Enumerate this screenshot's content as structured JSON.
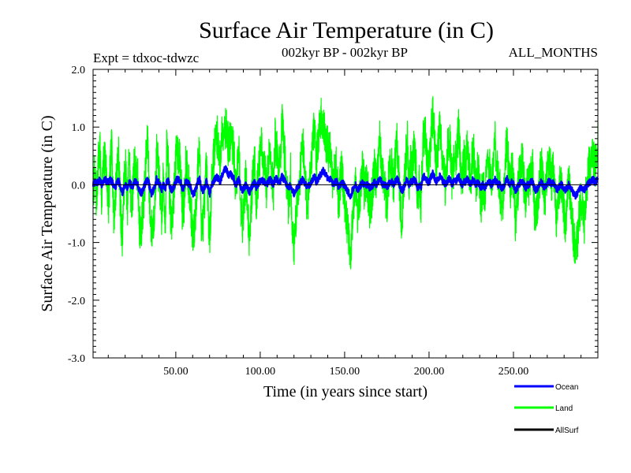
{
  "chart_data": {
    "type": "line",
    "title": "Surface Air Temperature (in C)",
    "subtitle_left": "Expt = tdxoc-tdwzc",
    "subtitle_center": "002kyr BP - 002kyr BP",
    "subtitle_right": "ALL_MONTHS",
    "xlabel": "Time (in years since start)",
    "ylabel": "Surface Air Temperature (in C)",
    "xlim": [
      1,
      300
    ],
    "ylim": [
      -3.0,
      2.0
    ],
    "xticks": [
      50,
      100,
      150,
      200,
      250
    ],
    "xtick_labels": [
      "50.00",
      "100.00",
      "150.00",
      "200.00",
      "250.00"
    ],
    "yticks": [
      -3.0,
      -2.0,
      -1.0,
      0.0,
      1.0,
      2.0
    ],
    "ytick_labels": [
      "-3.0",
      "-2.0",
      "-1.0",
      "0.0",
      "1.0",
      "2.0"
    ],
    "zero_line": true,
    "grid": false,
    "legend_position": "bottom-right",
    "months_per_year": 12,
    "colors": {
      "Ocean": "#0000ff",
      "Land": "#00ff00",
      "AllSurf": "#000000"
    },
    "series": [
      {
        "name": "Ocean",
        "x_start": 1,
        "x_end": 300,
        "values": [
          0.0,
          0.05,
          0.02,
          0.05,
          0.1,
          0.0,
          0.05,
          0.1,
          0.05,
          0.05,
          0.1,
          0.05,
          0.0,
          -0.05,
          0.05,
          0.05,
          -0.05,
          -0.15,
          -0.05,
          0.0,
          -0.05,
          0.05,
          0.0,
          -0.05,
          0.05,
          0.05,
          0.0,
          -0.1,
          -0.15,
          -0.1,
          0.0,
          0.05,
          0.1,
          -0.05,
          -0.15,
          -0.1,
          -0.05,
          0.1,
          0.05,
          0.0,
          -0.1,
          0.0,
          -0.1,
          0.1,
          0.05,
          -0.05,
          -0.1,
          -0.05,
          0.05,
          0.1,
          0.1,
          0.05,
          -0.05,
          -0.05,
          0.05,
          0.05,
          0.0,
          -0.05,
          -0.15,
          -0.15,
          -0.05,
          0.05,
          0.1,
          -0.05,
          -0.1,
          -0.05,
          0.05,
          -0.05,
          -0.15,
          0.0,
          0.05,
          0.1,
          0.15,
          0.1,
          0.05,
          0.15,
          0.2,
          0.3,
          0.25,
          0.15,
          0.2,
          0.15,
          0.1,
          0.0,
          0.05,
          0.1,
          -0.05,
          -0.1,
          -0.05,
          0.0,
          -0.05,
          -0.15,
          -0.05,
          0.0,
          0.05,
          -0.05,
          0.0,
          0.05,
          0.1,
          0.05,
          0.05,
          0.0,
          0.05,
          0.1,
          0.05,
          0.0,
          0.1,
          0.1,
          0.05,
          0.05,
          0.15,
          0.1,
          0.05,
          0.0,
          -0.05,
          0.0,
          -0.1,
          -0.15,
          -0.1,
          -0.05,
          0.0,
          0.05,
          0.1,
          0.05,
          0.0,
          -0.05,
          0.0,
          0.05,
          0.1,
          0.15,
          0.05,
          0.1,
          0.15,
          0.2,
          0.25,
          0.2,
          0.15,
          0.1,
          0.1,
          0.05,
          0.0,
          0.05,
          0.05,
          -0.05,
          0.0,
          0.05,
          0.0,
          -0.05,
          -0.1,
          -0.15,
          -0.2,
          -0.1,
          -0.05,
          0.0,
          -0.1,
          -0.05,
          0.0,
          0.05,
          0.0,
          0.0,
          0.0,
          -0.05,
          -0.05,
          0.0,
          0.05,
          0.0,
          0.05,
          0.1,
          0.05,
          0.0,
          0.0,
          -0.05,
          0.0,
          0.05,
          0.05,
          0.0,
          0.05,
          0.1,
          0.05,
          -0.05,
          -0.1,
          -0.05,
          0.05,
          0.1,
          0.0,
          0.05,
          0.05,
          0.1,
          0.05,
          -0.05,
          0.0,
          -0.05,
          0.1,
          0.15,
          0.1,
          0.05,
          0.05,
          0.15,
          0.2,
          0.1,
          0.05,
          0.1,
          0.15,
          0.1,
          0.05,
          0.0,
          0.05,
          0.1,
          0.1,
          0.0,
          0.05,
          0.05,
          0.1,
          0.15,
          0.05,
          0.0,
          0.05,
          0.05,
          0.1,
          0.05,
          0.0,
          0.1,
          0.05,
          0.0,
          0.05,
          0.0,
          -0.05,
          0.0,
          -0.05,
          0.0,
          0.05,
          0.05,
          0.0,
          0.05,
          0.1,
          0.05,
          0.0,
          0.0,
          -0.05,
          -0.05,
          0.05,
          0.1,
          0.05,
          0.0,
          0.05,
          0.0,
          -0.1,
          -0.05,
          0.0,
          0.05,
          0.05,
          0.0,
          -0.05,
          0.0,
          0.0,
          0.05,
          0.05,
          -0.05,
          -0.1,
          -0.05,
          0.0,
          0.05,
          0.0,
          -0.05,
          0.0,
          0.05,
          0.05,
          0.0,
          0.05,
          0.0,
          -0.1,
          -0.05,
          0.0,
          0.0,
          -0.05,
          -0.1,
          -0.05,
          0.0,
          -0.05,
          -0.1,
          -0.15,
          -0.2,
          -0.15,
          -0.1,
          -0.05,
          -0.05,
          -0.1,
          -0.05,
          0.0,
          0.05,
          0.05,
          0.1,
          0.05,
          0.05,
          0.1
        ]
      },
      {
        "name": "Land",
        "x_start": 1,
        "x_end": 300,
        "values": [
          -0.1,
          0.2,
          -0.3,
          0.4,
          0.6,
          -0.2,
          0.3,
          0.5,
          0.1,
          -0.4,
          0.3,
          0.7,
          -0.6,
          -0.2,
          0.4,
          0.5,
          -0.5,
          -0.9,
          0.0,
          0.3,
          -0.4,
          0.6,
          -0.3,
          -0.2,
          0.5,
          0.2,
          0.1,
          -0.7,
          -0.8,
          -0.4,
          -0.1,
          0.6,
          0.7,
          -0.4,
          -0.8,
          -0.7,
          -0.3,
          0.5,
          0.3,
          -0.1,
          -0.6,
          0.2,
          -0.7,
          0.7,
          0.3,
          -0.5,
          -0.6,
          -0.2,
          0.4,
          0.6,
          0.5,
          0.3,
          -0.5,
          -0.3,
          0.4,
          0.3,
          -0.1,
          -0.4,
          -0.9,
          -0.8,
          -0.3,
          0.3,
          0.6,
          -0.6,
          -0.7,
          -0.2,
          0.3,
          -0.4,
          -1.0,
          0.1,
          0.4,
          0.7,
          0.9,
          0.7,
          0.4,
          0.9,
          1.0,
          1.0,
          0.9,
          0.6,
          0.8,
          0.7,
          0.6,
          -0.1,
          0.3,
          0.6,
          -0.4,
          -0.7,
          -0.2,
          0.1,
          -0.4,
          -0.9,
          -0.4,
          0.1,
          0.5,
          -0.3,
          0.1,
          0.4,
          0.7,
          0.3,
          0.3,
          -0.1,
          0.4,
          0.7,
          0.2,
          -0.1,
          0.8,
          0.6,
          0.3,
          0.4,
          1.1,
          0.7,
          0.4,
          -0.1,
          -0.4,
          0.2,
          -0.7,
          -1.1,
          -0.6,
          -0.3,
          0.0,
          0.4,
          0.8,
          0.4,
          -0.1,
          -0.4,
          0.1,
          0.4,
          0.8,
          1.0,
          0.4,
          0.7,
          1.0,
          1.2,
          1.1,
          0.8,
          0.7,
          0.6,
          0.6,
          0.3,
          -0.1,
          0.4,
          0.3,
          -0.4,
          0.1,
          0.3,
          -0.1,
          -0.4,
          -0.7,
          -1.0,
          -1.2,
          -0.6,
          -0.3,
          0.1,
          -0.7,
          -0.3,
          0.0,
          0.4,
          -0.1,
          0.1,
          -0.1,
          -0.4,
          -0.3,
          0.0,
          0.3,
          0.0,
          0.4,
          0.8,
          0.3,
          0.1,
          -0.1,
          -0.4,
          0.1,
          0.4,
          0.3,
          0.0,
          0.4,
          0.7,
          0.3,
          -0.4,
          -0.7,
          -0.2,
          0.4,
          0.8,
          0.0,
          0.4,
          0.3,
          0.7,
          0.4,
          -0.3,
          0.1,
          -0.4,
          0.7,
          1.0,
          0.7,
          0.3,
          0.4,
          1.0,
          1.2,
          0.7,
          0.3,
          0.7,
          1.0,
          0.6,
          0.3,
          0.0,
          0.4,
          0.8,
          0.7,
          0.1,
          0.3,
          0.4,
          0.7,
          1.0,
          0.3,
          0.1,
          0.4,
          0.3,
          0.8,
          0.3,
          0.0,
          0.7,
          0.4,
          -0.1,
          0.3,
          0.1,
          -0.4,
          0.1,
          -0.3,
          0.1,
          0.4,
          0.3,
          0.0,
          0.4,
          0.8,
          0.3,
          0.1,
          -0.1,
          -0.4,
          -0.3,
          0.4,
          0.8,
          0.3,
          -0.1,
          0.3,
          0.0,
          -0.7,
          -0.3,
          0.1,
          0.3,
          0.4,
          0.0,
          -0.4,
          0.1,
          -0.1,
          0.3,
          0.3,
          -0.4,
          -0.6,
          -0.3,
          0.1,
          0.4,
          0.0,
          -0.3,
          0.1,
          0.3,
          0.4,
          0.0,
          0.3,
          -0.1,
          -0.7,
          -0.3,
          0.1,
          0.0,
          -0.4,
          -0.7,
          -0.3,
          0.1,
          -0.3,
          -0.7,
          -0.9,
          -1.2,
          -1.0,
          -0.6,
          -0.3,
          -0.4,
          -0.7,
          -0.2,
          0.1,
          0.4,
          0.3,
          0.6,
          0.3,
          0.4,
          0.7
        ]
      },
      {
        "name": "AllSurf",
        "x_start": 1,
        "x_end": 300,
        "values": []
      }
    ]
  }
}
